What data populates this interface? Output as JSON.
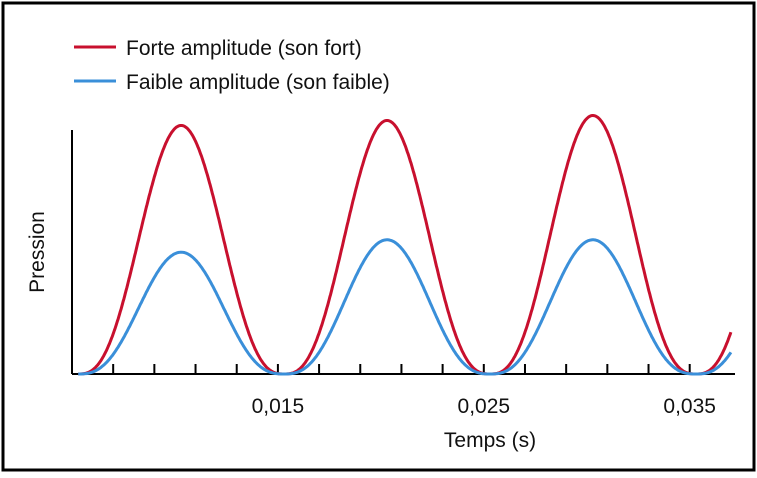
{
  "chart_data": {
    "type": "line",
    "title": "",
    "xlabel": "Temps (s)",
    "ylabel": "Pression",
    "x_ticks": [
      "0,015",
      "0,025",
      "0,035"
    ],
    "x_tick_values": [
      0.015,
      0.025,
      0.035
    ],
    "x_minor_tick_values": [
      0.007,
      0.009,
      0.011,
      0.013,
      0.017,
      0.019,
      0.021,
      0.023,
      0.027,
      0.029,
      0.031,
      0.033
    ],
    "xlim": [
      0.005,
      0.0372
    ],
    "ylim": [
      0,
      1.03
    ],
    "period": 0.01,
    "legend_position": "top-left",
    "grid": false,
    "series": [
      {
        "name": "Forte amplitude (son fort)",
        "color": "#c8102e",
        "peak_x": [
          0.01,
          0.02,
          0.03
        ],
        "peak_y": [
          1.0,
          1.02,
          1.04
        ],
        "min_x": [
          0.0053,
          0.0153,
          0.0253,
          0.0353
        ],
        "min_y": [
          0,
          0,
          0,
          0
        ]
      },
      {
        "name": "Faible amplitude (son faible)",
        "color": "#3a8fd9",
        "peak_x": [
          0.01,
          0.02,
          0.03
        ],
        "peak_y": [
          0.49,
          0.54,
          0.54
        ],
        "min_x": [
          0.0053,
          0.0153,
          0.0253,
          0.0353
        ],
        "min_y": [
          0,
          0,
          0,
          0
        ]
      }
    ]
  }
}
